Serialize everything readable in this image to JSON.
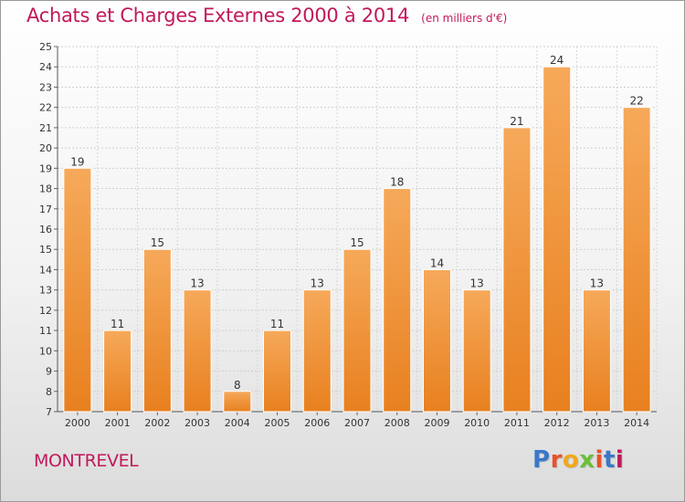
{
  "chart_title": "Achats et Charges Externes 2000 à 2014",
  "chart_unit": "(en milliers d'€)",
  "location": "MONTREVEL",
  "logo": {
    "text": "Proxiti",
    "letter_colors": [
      "#3a78c9",
      "#e8522b",
      "#f0a81a",
      "#6abf3a",
      "#e8522b",
      "#3a78c9",
      "#c2185b"
    ]
  },
  "chart_data": {
    "type": "bar",
    "title": "Achats et Charges Externes 2000 à 2014",
    "subtitle": "(en milliers d'€)",
    "xlabel": "",
    "ylabel": "",
    "categories": [
      "2000",
      "2001",
      "2002",
      "2003",
      "2004",
      "2005",
      "2006",
      "2007",
      "2008",
      "2009",
      "2010",
      "2011",
      "2012",
      "2013",
      "2014"
    ],
    "values": [
      19,
      11,
      15,
      13,
      8,
      11,
      13,
      15,
      18,
      14,
      13,
      21,
      24,
      13,
      22
    ],
    "ylim": [
      7,
      25
    ],
    "yticks": [
      7,
      8,
      9,
      10,
      11,
      12,
      13,
      14,
      15,
      16,
      17,
      18,
      19,
      20,
      21,
      22,
      23,
      24,
      25
    ],
    "grid": true,
    "legend": "none",
    "bar_color": "#e8801f",
    "bar_color_light": "#f6a95a"
  }
}
